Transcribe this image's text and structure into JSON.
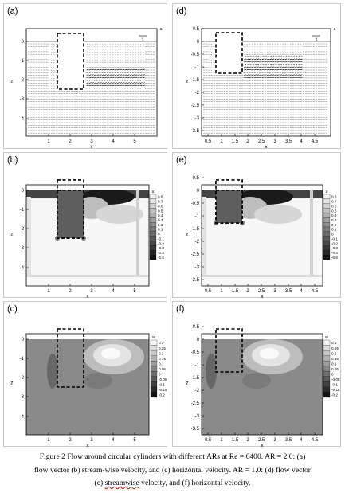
{
  "panels": [
    {
      "id": "a",
      "label": "(a)",
      "type": "vector",
      "xticks": [
        "1",
        "2",
        "3",
        "4",
        "5"
      ],
      "yticks": [
        "0",
        "-1",
        "-2",
        "-3",
        "-4"
      ],
      "xlabel": "x",
      "ylabel": "z",
      "legend_title": "u",
      "ref_label": "1"
    },
    {
      "id": "d",
      "label": "(d)",
      "type": "vector",
      "xticks": [
        "0.5",
        "1",
        "1.5",
        "2",
        "2.5",
        "3",
        "3.5",
        "4",
        "4.5"
      ],
      "yticks": [
        "0.5",
        "0",
        "-0.5",
        "-1",
        "-1.5",
        "-2",
        "-2.5",
        "-3",
        "-3.5"
      ],
      "xlabel": "x",
      "ylabel": "z",
      "legend_title": "u",
      "ref_label": "1"
    },
    {
      "id": "b",
      "label": "(b)",
      "type": "contour",
      "xticks": [
        "1",
        "2",
        "3",
        "4",
        "5"
      ],
      "yticks": [
        "0",
        "-1",
        "-2",
        "-3",
        "-4"
      ],
      "xlabel": "x",
      "ylabel": "z",
      "legend_title": "u",
      "legend": [
        "0.8",
        "0.7",
        "0.6",
        "0.5",
        "0.4",
        "0.3",
        "0.2",
        "0.1",
        "0",
        "-0.1",
        "-0.2",
        "-0.3",
        "-0.4",
        "-0.5"
      ]
    },
    {
      "id": "e",
      "label": "(e)",
      "type": "contour",
      "xticks": [
        "0.5",
        "1",
        "1.5",
        "2",
        "2.5",
        "3",
        "3.5",
        "4",
        "4.5"
      ],
      "yticks": [
        "0.5",
        "0",
        "-0.5",
        "-1",
        "-1.5",
        "-2",
        "-2.5",
        "-3",
        "-3.5"
      ],
      "xlabel": "x",
      "ylabel": "z",
      "legend_title": "u",
      "legend": [
        "0.8",
        "0.7",
        "0.6",
        "0.5",
        "0.4",
        "0.3",
        "0.2",
        "0.1",
        "0",
        "-0.1",
        "-0.2",
        "-0.3",
        "-0.4",
        "-0.5"
      ]
    },
    {
      "id": "c",
      "label": "(c)",
      "type": "hcontour",
      "xticks": [
        "1",
        "2",
        "3",
        "4",
        "5"
      ],
      "yticks": [
        "0",
        "-1",
        "-2",
        "-3",
        "-4"
      ],
      "xlabel": "x",
      "ylabel": "z",
      "legend_title": "w",
      "legend": [
        "0.3",
        "0.25",
        "0.2",
        "0.15",
        "0.1",
        "0.05",
        "0",
        "-0.05",
        "-0.1",
        "-0.15",
        "-0.2"
      ]
    },
    {
      "id": "f",
      "label": "(f)",
      "type": "hcontour",
      "xticks": [
        "0.5",
        "1",
        "1.5",
        "2",
        "2.5",
        "3",
        "3.5",
        "4",
        "4.5"
      ],
      "yticks": [
        "0.5",
        "0",
        "-0.5",
        "-1",
        "-1.5",
        "-2",
        "-2.5",
        "-3",
        "-3.5"
      ],
      "xlabel": "x",
      "ylabel": "z",
      "legend_title": "w",
      "legend": [
        "0.3",
        "0.25",
        "0.2",
        "0.15",
        "0.1",
        "0.05",
        "0",
        "-0.05",
        "-0.1",
        "-0.15",
        "-0.2"
      ]
    }
  ],
  "caption": {
    "line1": "Figure 2 Flow around circular cylinders with different ARs at Re = 6400. AR = 2.0: (a)",
    "line2": "flow vector (b) stream-wise velocity, and (c) horizontal velocity. AR = 1.0: (d) flow vector",
    "line3_pre": "(e) ",
    "line3_misspelled": "streamwise",
    "line3_post": " velocity, and (f) horizontal velocity."
  }
}
